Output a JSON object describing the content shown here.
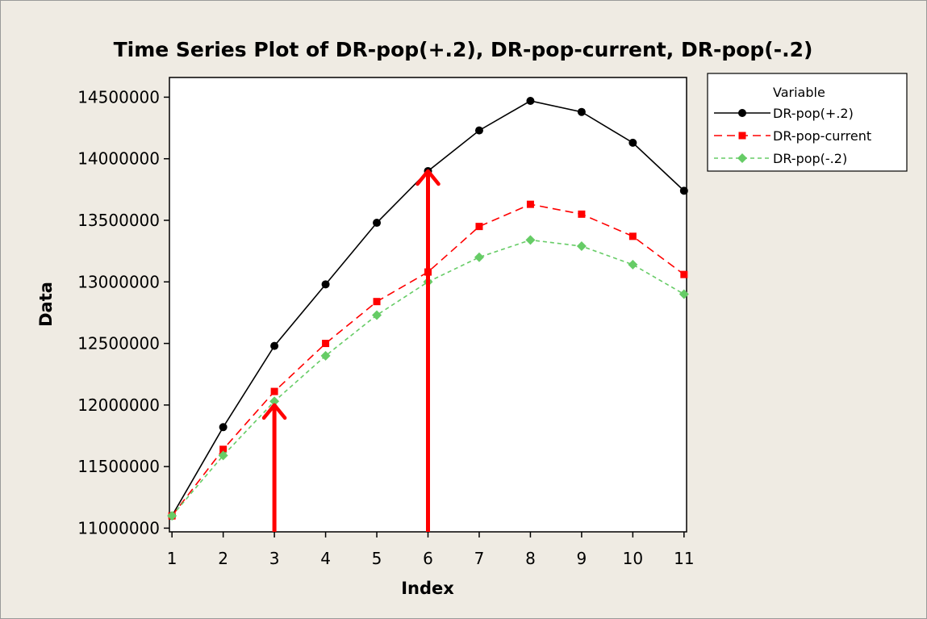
{
  "chart_data": {
    "type": "line",
    "title": "Time Series Plot of DR-pop(+.2), DR-pop-current, DR-pop(-.2)",
    "xlabel": "Index",
    "ylabel": "Data",
    "x": [
      1,
      2,
      3,
      4,
      5,
      6,
      7,
      8,
      9,
      10,
      11
    ],
    "xlim": [
      0.95,
      11.05
    ],
    "ylim": [
      10970000,
      14660000
    ],
    "yticks": [
      11000000,
      11500000,
      12000000,
      12500000,
      13000000,
      13500000,
      14000000,
      14500000
    ],
    "legend": {
      "title": "Variable",
      "position": "right"
    },
    "series": [
      {
        "name": "DR-pop(+.2)",
        "color": "#000000",
        "marker": "circle",
        "line": "solid",
        "values": [
          11100000,
          11820000,
          12480000,
          12980000,
          13480000,
          13900000,
          14230000,
          14470000,
          14380000,
          14130000,
          13740000
        ]
      },
      {
        "name": "DR-pop-current",
        "color": "#ff0000",
        "marker": "square",
        "line": "dashed",
        "values": [
          11100000,
          11640000,
          12110000,
          12500000,
          12840000,
          13080000,
          13450000,
          13630000,
          13550000,
          13370000,
          13060000
        ]
      },
      {
        "name": "DR-pop(-.2)",
        "color": "#66cc66",
        "marker": "diamond",
        "line": "dotted",
        "values": [
          11100000,
          11590000,
          12030000,
          12400000,
          12730000,
          13000000,
          13200000,
          13340000,
          13290000,
          13140000,
          12900000
        ]
      }
    ],
    "annotations": [
      {
        "type": "arrow",
        "x": 3,
        "y": 12000000,
        "color": "#ff0000"
      },
      {
        "type": "arrow",
        "x": 6,
        "y": 13900000,
        "color": "#ff0000"
      }
    ]
  }
}
